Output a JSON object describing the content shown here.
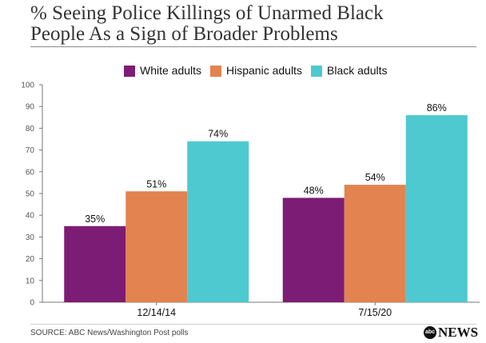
{
  "chart_data": {
    "type": "bar",
    "title_lines": [
      "% Seeing Police Killings of Unarmed Black",
      "People As a Sign of Broader Problems"
    ],
    "categories": [
      "12/14/14",
      "7/15/20"
    ],
    "series": [
      {
        "name": "White adults",
        "values": [
          35,
          48
        ],
        "color": "#7d1c74"
      },
      {
        "name": "Hispanic adults",
        "values": [
          51,
          54
        ],
        "color": "#e28350"
      },
      {
        "name": "Black adults",
        "values": [
          74,
          86
        ],
        "color": "#4ec9cf"
      }
    ],
    "value_labels": [
      [
        "35%",
        "48%"
      ],
      [
        "51%",
        "54%"
      ],
      [
        "74%",
        "86%"
      ]
    ],
    "ylim": [
      0,
      100
    ],
    "yticks": [
      "0",
      "10",
      "20",
      "30",
      "40",
      "50",
      "60",
      "70",
      "80",
      "90",
      "100"
    ],
    "xlabel": "",
    "ylabel": "",
    "grid": false,
    "legend": "top-center"
  },
  "footer": {
    "source": "SOURCE: ABC News/Washington Post polls",
    "logo_mark": "abc",
    "logo_text": "NEWS"
  }
}
